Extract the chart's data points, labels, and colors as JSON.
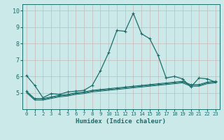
{
  "title": "",
  "xlabel": "Humidex (Indice chaleur)",
  "ylabel": "",
  "xlim": [
    -0.5,
    23.5
  ],
  "ylim": [
    4.0,
    10.4
  ],
  "yticks": [
    5,
    6,
    7,
    8,
    9,
    10
  ],
  "xticks": [
    0,
    1,
    2,
    3,
    4,
    5,
    6,
    7,
    8,
    9,
    10,
    11,
    12,
    13,
    14,
    15,
    16,
    17,
    18,
    19,
    20,
    21,
    22,
    23
  ],
  "bg_color": "#cce9ea",
  "grid_color": "#c8b8b8",
  "line_color": "#1a6e6a",
  "line1_x": [
    0,
    1,
    2,
    3,
    4,
    5,
    6,
    7,
    8,
    9,
    10,
    11,
    12,
    13,
    14,
    15,
    16,
    17,
    18,
    19,
    20,
    21,
    22,
    23
  ],
  "line1_y": [
    6.05,
    5.45,
    4.7,
    4.95,
    4.9,
    5.05,
    5.1,
    5.15,
    5.45,
    6.35,
    7.45,
    8.8,
    8.75,
    9.85,
    8.6,
    8.3,
    7.3,
    5.9,
    6.0,
    5.85,
    5.35,
    5.9,
    5.85,
    5.65
  ],
  "line2_x": [
    0,
    1,
    2,
    3,
    4,
    5,
    6,
    7,
    8,
    9,
    10,
    11,
    12,
    13,
    14,
    15,
    16,
    17,
    18,
    19,
    20,
    21,
    22,
    23
  ],
  "line2_y": [
    5.1,
    4.65,
    4.65,
    4.75,
    4.85,
    4.9,
    5.0,
    5.05,
    5.15,
    5.2,
    5.25,
    5.3,
    5.35,
    5.4,
    5.45,
    5.5,
    5.55,
    5.6,
    5.65,
    5.7,
    5.5,
    5.5,
    5.65,
    5.7
  ],
  "line3_x": [
    0,
    1,
    2,
    3,
    4,
    5,
    6,
    7,
    8,
    9,
    10,
    11,
    12,
    13,
    14,
    15,
    16,
    17,
    18,
    19,
    20,
    21,
    22,
    23
  ],
  "line3_y": [
    5.05,
    4.6,
    4.6,
    4.7,
    4.8,
    4.85,
    4.95,
    5.0,
    5.1,
    5.15,
    5.2,
    5.25,
    5.3,
    5.35,
    5.4,
    5.45,
    5.5,
    5.55,
    5.6,
    5.65,
    5.45,
    5.45,
    5.6,
    5.65
  ],
  "line4_x": [
    0,
    1,
    2,
    3,
    4,
    5,
    6,
    7,
    8,
    9,
    10,
    11,
    12,
    13,
    14,
    15,
    16,
    17,
    18,
    19,
    20,
    21,
    22,
    23
  ],
  "line4_y": [
    5.0,
    4.55,
    4.55,
    4.65,
    4.75,
    4.8,
    4.9,
    4.95,
    5.05,
    5.1,
    5.15,
    5.2,
    5.25,
    5.3,
    5.35,
    5.4,
    5.45,
    5.5,
    5.55,
    5.6,
    5.4,
    5.4,
    5.55,
    5.6
  ]
}
